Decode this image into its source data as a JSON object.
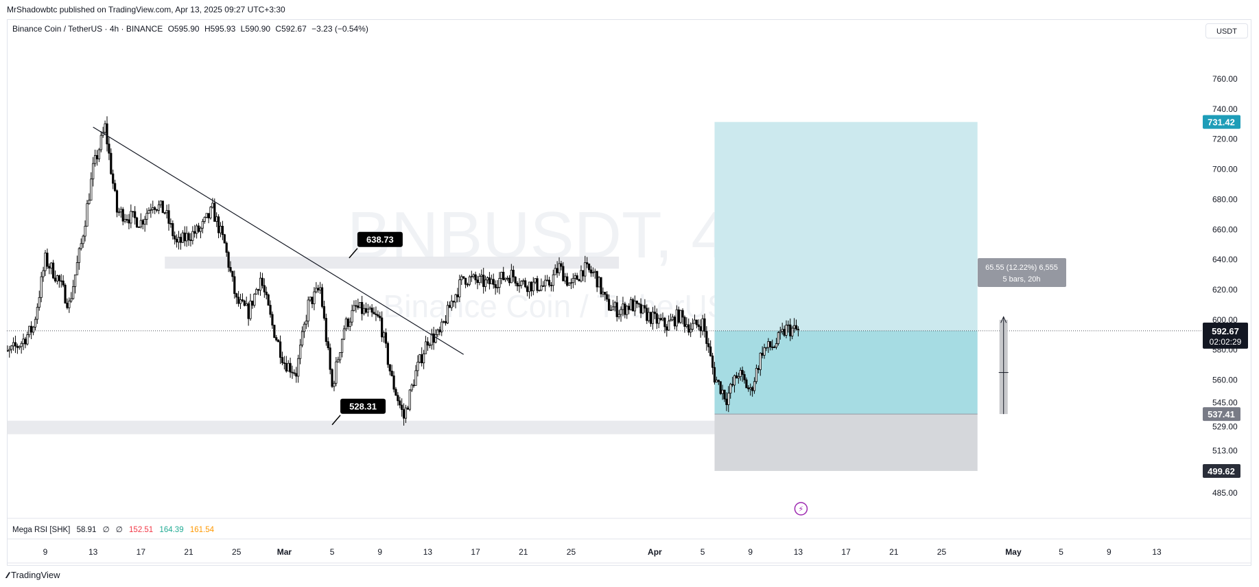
{
  "header": {
    "published_line": "MrShadowbtc published on TradingView.com, Apr 13, 2025 09:27 UTC+3:30"
  },
  "legend": {
    "symbol": "Binance Coin / TetherUS · 4h · BINANCE",
    "open": "O595.90",
    "high": "H595.93",
    "low": "L590.90",
    "close": "C592.67",
    "change": "−3.23 (−0.54%)"
  },
  "unit_button": "USDT",
  "watermark": {
    "ticker": "BNBUSDT, 4h",
    "name": "Binance Coin / TetherUS"
  },
  "indicator": {
    "name": "Mega RSI [SHK]",
    "v1": "58.91",
    "v2": "∅",
    "v3": "∅",
    "v4": "152.51",
    "v5": "164.39",
    "v6": "161.54",
    "colors": {
      "v4": "#f23645",
      "v5": "#22ab94",
      "v6": "#ff9800"
    }
  },
  "brand": {
    "name": "TradingView"
  },
  "colors": {
    "target_zone": "#b2dfe6",
    "stop_zone": "#d1d4dc",
    "target_label": "#1e9db8",
    "price_label": "#131722",
    "stop_label": "#4a4e5a"
  },
  "chart_data": {
    "type": "candlestick",
    "y_range": [
      478,
      780
    ],
    "y_ticks": [
      "760.00",
      "740.00",
      "720.00",
      "700.00",
      "680.00",
      "660.00",
      "640.00",
      "620.00",
      "600.00",
      "580.00",
      "560.00",
      "545.00",
      "529.00",
      "513.00",
      "499.00",
      "485.00"
    ],
    "x_ticks": [
      {
        "label": "9",
        "bold": false
      },
      {
        "label": "13",
        "bold": false
      },
      {
        "label": "17",
        "bold": false
      },
      {
        "label": "21",
        "bold": false
      },
      {
        "label": "25",
        "bold": false
      },
      {
        "label": "Mar",
        "bold": true
      },
      {
        "label": "5",
        "bold": false
      },
      {
        "label": "9",
        "bold": false
      },
      {
        "label": "13",
        "bold": false
      },
      {
        "label": "17",
        "bold": false
      },
      {
        "label": "21",
        "bold": false
      },
      {
        "label": "25",
        "bold": false
      },
      {
        "label": "Apr",
        "bold": true
      },
      {
        "label": "5",
        "bold": false
      },
      {
        "label": "9",
        "bold": false
      },
      {
        "label": "13",
        "bold": false
      },
      {
        "label": "17",
        "bold": false
      },
      {
        "label": "21",
        "bold": false
      },
      {
        "label": "25",
        "bold": false
      },
      {
        "label": "May",
        "bold": true
      },
      {
        "label": "5",
        "bold": false
      },
      {
        "label": "9",
        "bold": false
      },
      {
        "label": "13",
        "bold": false
      }
    ],
    "x_tick_positions": [
      "Feb 9",
      "Feb 13",
      "Feb 17",
      "Feb 21",
      "Feb 25",
      "Mar 1",
      "Mar 5",
      "Mar 9",
      "Mar 13",
      "Mar 17",
      "Mar 21",
      "Mar 25",
      "Apr 1",
      "Apr 5",
      "Apr 9",
      "Apr 13",
      "Apr 17",
      "Apr 21",
      "Apr 25",
      "May 1",
      "May 5",
      "May 9",
      "May 13"
    ],
    "price_path": [
      [
        "Feb 5",
        572
      ],
      [
        "Feb 7",
        585
      ],
      [
        "Feb 8",
        595
      ],
      [
        "Feb 9",
        640
      ],
      [
        "Feb 10",
        628
      ],
      [
        "Feb 11",
        610
      ],
      [
        "Feb 12",
        650
      ],
      [
        "Feb 13",
        700
      ],
      [
        "Feb 14",
        728
      ],
      [
        "Feb 15",
        672
      ],
      [
        "Feb 17",
        665
      ],
      [
        "Feb 18",
        678
      ],
      [
        "Feb 19",
        672
      ],
      [
        "Feb 20",
        650
      ],
      [
        "Feb 21",
        656
      ],
      [
        "Feb 22",
        660
      ],
      [
        "Feb 23",
        673
      ],
      [
        "Feb 24",
        650
      ],
      [
        "Feb 25",
        612
      ],
      [
        "Feb 26",
        605
      ],
      [
        "Feb 27",
        628
      ],
      [
        "Feb 28",
        596
      ],
      [
        "Mar 1",
        572
      ],
      [
        "Mar 2",
        565
      ],
      [
        "Mar 3",
        610
      ],
      [
        "Mar 4",
        621
      ],
      [
        "Mar 5",
        555
      ],
      [
        "Mar 6",
        595
      ],
      [
        "Mar 7",
        608
      ],
      [
        "Mar 8",
        604
      ],
      [
        "Mar 9",
        600
      ],
      [
        "Mar 10",
        560
      ],
      [
        "Mar 11",
        535
      ],
      [
        "Mar 12",
        565
      ],
      [
        "Mar 13",
        587
      ],
      [
        "Mar 14",
        590
      ],
      [
        "Mar 15",
        612
      ],
      [
        "Mar 16",
        628
      ],
      [
        "Mar 17",
        626
      ],
      [
        "Mar 18",
        624
      ],
      [
        "Mar 20",
        630
      ],
      [
        "Mar 21",
        624
      ],
      [
        "Mar 23",
        622
      ],
      [
        "Mar 24",
        635
      ],
      [
        "Mar 25",
        622
      ],
      [
        "Mar 26",
        634
      ],
      [
        "Mar 27",
        630
      ],
      [
        "Mar 28",
        610
      ],
      [
        "Mar 29",
        606
      ],
      [
        "Mar 30",
        610
      ],
      [
        "Mar 31",
        605
      ],
      [
        "Apr 1",
        600
      ],
      [
        "Apr 2",
        596
      ],
      [
        "Apr 3",
        603
      ],
      [
        "Apr 4",
        595
      ],
      [
        "Apr 5",
        598
      ],
      [
        "Apr 6",
        562
      ],
      [
        "Apr 7",
        548
      ],
      [
        "Apr 8",
        565
      ],
      [
        "Apr 9",
        552
      ],
      [
        "Apr 10",
        580
      ],
      [
        "Apr 11",
        583
      ],
      [
        "Apr 12",
        594
      ],
      [
        "Apr 13",
        592.67
      ]
    ],
    "trendline": {
      "from": [
        "Feb 13",
        728
      ],
      "to": [
        "Mar 16",
        577
      ]
    },
    "zones": [
      {
        "name": "resistance",
        "from": "Feb 19",
        "to": "Mar 29",
        "low": 634,
        "high": 642,
        "label": "638.73"
      },
      {
        "name": "support",
        "from": "Feb 5",
        "to": "Apr 18",
        "low": 524,
        "high": 533,
        "label": "528.31"
      }
    ],
    "position": {
      "type": "long",
      "from": "Apr 6",
      "to": "Apr 28",
      "entry": 592.67,
      "target": 731.42,
      "stop": 537.41,
      "lower": 499.62,
      "measure_text": "65.55 (12.22%) 6,555",
      "measure_sub": "5 bars, 20h"
    },
    "last_price": {
      "value": "592.67",
      "countdown": "02:02:29"
    },
    "axis_labels": {
      "target": "731.42",
      "stop": "537.41",
      "lower": "499.62"
    }
  }
}
